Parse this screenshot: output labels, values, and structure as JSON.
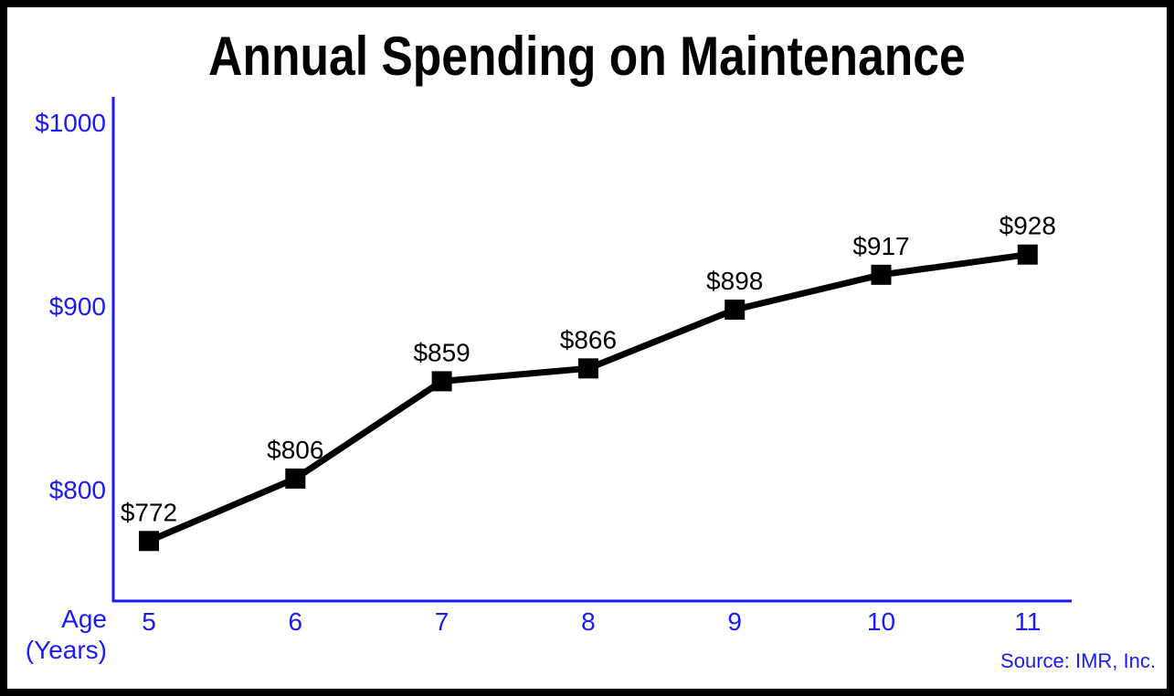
{
  "chart_data": {
    "type": "line",
    "title": "Annual Spending on Maintenance",
    "xlabel": "Age (Years)",
    "xlabel_lines": [
      "Age",
      "(Years)"
    ],
    "ylabel": "",
    "categories": [
      "5",
      "6",
      "7",
      "8",
      "9",
      "10",
      "11"
    ],
    "values": [
      772,
      806,
      859,
      866,
      898,
      917,
      928
    ],
    "data_labels": [
      "$772",
      "$806",
      "$859",
      "$866",
      "$898",
      "$917",
      "$928"
    ],
    "y_ticks": [
      800,
      900,
      1000
    ],
    "y_tick_labels": [
      "$800",
      "$900",
      "$1000"
    ],
    "ylim": [
      740,
      1010
    ],
    "grid": false,
    "legend": "none",
    "marker": "square",
    "source": "Source: IMR, Inc.",
    "colors": {
      "line": "#000000",
      "axis": "#1a1aff",
      "axis_text": "#1a1aff",
      "data_label": "#000000",
      "frame": "#000000"
    }
  }
}
